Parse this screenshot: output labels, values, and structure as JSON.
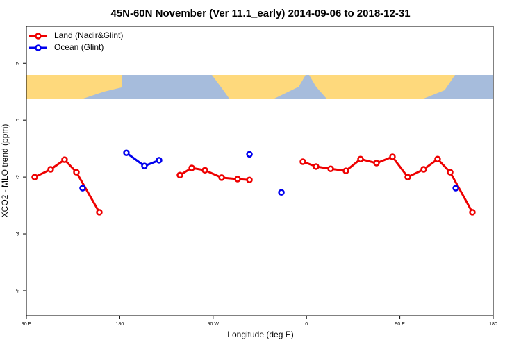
{
  "chart_data": {
    "type": "line",
    "title": "45N-60N November (Ver 11.1_early)   2014-09-06 to 2018-12-31",
    "x_label": "Longitude (deg E)",
    "y_label": "XCO2 - MLO trend (ppm)",
    "xlim": [
      90,
      540
    ],
    "ylim": [
      -6.88,
      3.3
    ],
    "xticks": [
      {
        "value": 90,
        "label": "90 E"
      },
      180,
      {
        "value": 270,
        "label": "90 W"
      },
      {
        "value": 360,
        "label": "0"
      },
      {
        "value": 450,
        "label": "90 E"
      },
      {
        "value": 540,
        "label": "180"
      }
    ],
    "yticks": [
      2,
      0,
      -2,
      -4,
      -6
    ],
    "legend": "top-left",
    "series": [
      {
        "name": "Land (Nadir&Glint)",
        "color": "#ee0000",
        "x": [
          98,
          113.4,
          126.8,
          138.2,
          160.3,
          null,
          238,
          249.4,
          262.1,
          278.2,
          293.6,
          305,
          null,
          356.5,
          369.2,
          383.3,
          398,
          412.1,
          427.5,
          442.9,
          457.6,
          473,
          486.4,
          498.5,
          519.9
        ],
        "values": [
          -2.0,
          -1.73,
          -1.39,
          -1.83,
          -3.24,
          null,
          -1.93,
          -1.68,
          -1.76,
          -2.02,
          -2.07,
          -2.1,
          null,
          -1.46,
          -1.63,
          -1.71,
          -1.78,
          -1.37,
          -1.51,
          -1.29,
          -2.0,
          -1.73,
          -1.37,
          -1.83,
          -3.24
        ]
      },
      {
        "name": "Ocean (Glint)",
        "color": "#0000ee",
        "x": [
          144.2,
          null,
          186.4,
          203.8,
          217.9,
          null,
          305,
          null,
          335.8,
          null,
          503.9
        ],
        "values": [
          -2.39,
          null,
          -1.15,
          -1.61,
          -1.41,
          null,
          -1.2,
          null,
          -2.54,
          null,
          -2.39
        ]
      }
    ]
  }
}
